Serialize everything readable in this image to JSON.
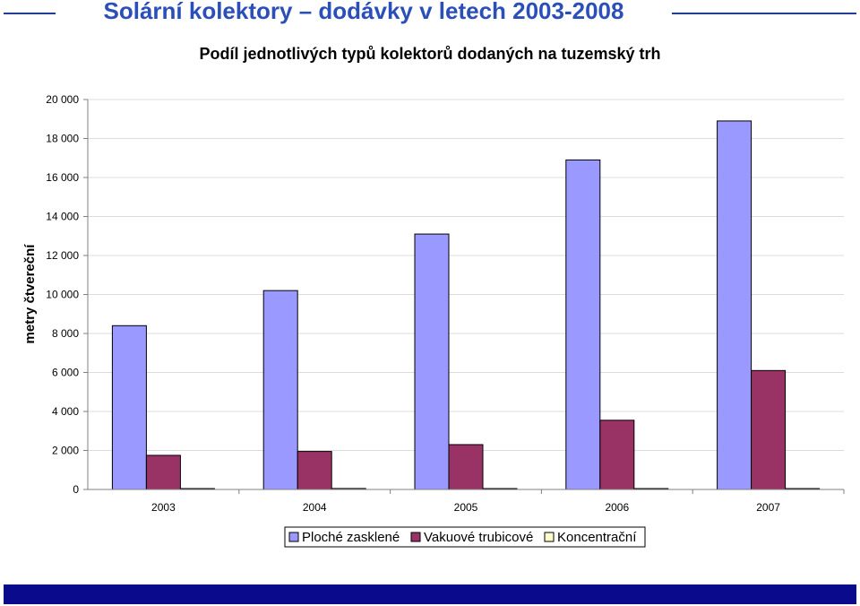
{
  "header": {
    "title": "Solární kolektory – dodávky v letech 2003-2008"
  },
  "colors": {
    "header_text": "#2b4fb8",
    "header_rule": "#1f3f9a",
    "footer_bar": "#0a0a8c",
    "series": [
      "#9999ff",
      "#993366",
      "#ffffcc"
    ]
  },
  "chart_data": {
    "type": "bar",
    "title": "Podíl jednotlivých typů kolektorů dodaných na tuzemský trh",
    "ylabel": "metry čtvereční",
    "xlabel": "",
    "categories": [
      "2003",
      "2004",
      "2005",
      "2006",
      "2007"
    ],
    "ylim": [
      0,
      20000
    ],
    "yticks": [
      0,
      2000,
      4000,
      6000,
      8000,
      10000,
      12000,
      14000,
      16000,
      18000,
      20000
    ],
    "ytick_labels": [
      "0",
      "2 000",
      "4 000",
      "6 000",
      "8 000",
      "10 000",
      "12 000",
      "14 000",
      "16 000",
      "18 000",
      "20 000"
    ],
    "grid": true,
    "legend": "bottom",
    "series": [
      {
        "name": "Ploché zasklené",
        "values": [
          8400,
          10200,
          13100,
          16900,
          18900
        ]
      },
      {
        "name": "Vakuové trubicové",
        "values": [
          1750,
          1950,
          2300,
          3550,
          6100
        ]
      },
      {
        "name": "Koncentrační",
        "values": [
          0,
          50,
          30,
          0,
          0
        ]
      }
    ]
  }
}
